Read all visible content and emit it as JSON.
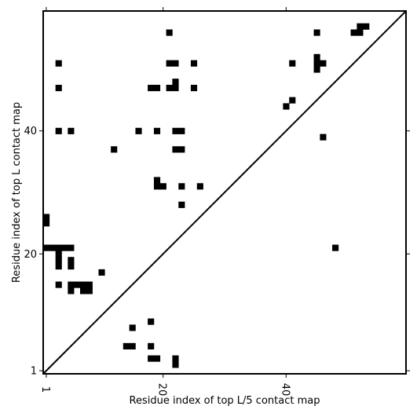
{
  "chart_data": {
    "type": "heatmap",
    "title": "",
    "xlabel": "Residue index of top L/5 contact map",
    "ylabel": "Residue index of top L contact map",
    "xlim": [
      0.5,
      59.5
    ],
    "ylim": [
      0.5,
      59.5
    ],
    "x_ticks": [
      1,
      20,
      40
    ],
    "y_ticks": [
      1,
      20,
      40
    ],
    "x_tick_labels": [
      "1",
      "20",
      "40"
    ],
    "y_tick_labels": [
      "1",
      "20",
      "40"
    ],
    "cell_color": "#000000",
    "background_color": "#ffffff",
    "diagonal": true,
    "cells": [
      [
        1,
        25
      ],
      [
        1,
        26
      ],
      [
        1,
        21
      ],
      [
        2,
        21
      ],
      [
        3,
        21
      ],
      [
        4,
        21
      ],
      [
        3,
        20
      ],
      [
        5,
        21
      ],
      [
        3,
        19
      ],
      [
        3,
        18
      ],
      [
        5,
        19
      ],
      [
        5,
        18
      ],
      [
        10,
        17
      ],
      [
        3,
        15
      ],
      [
        5,
        15
      ],
      [
        6,
        15
      ],
      [
        7,
        15
      ],
      [
        8,
        15
      ],
      [
        5,
        14
      ],
      [
        7,
        14
      ],
      [
        8,
        14
      ],
      [
        15,
        8
      ],
      [
        14,
        5
      ],
      [
        15,
        5
      ],
      [
        18,
        9
      ],
      [
        18,
        5
      ],
      [
        18,
        3
      ],
      [
        19,
        3
      ],
      [
        22,
        3
      ],
      [
        22,
        2
      ],
      [
        3,
        51
      ],
      [
        3,
        47
      ],
      [
        3,
        40
      ],
      [
        5,
        40
      ],
      [
        12,
        37
      ],
      [
        16,
        40
      ],
      [
        19,
        40
      ],
      [
        22,
        40
      ],
      [
        23,
        40
      ],
      [
        18,
        47
      ],
      [
        19,
        47
      ],
      [
        21,
        47
      ],
      [
        22,
        47
      ],
      [
        22,
        48
      ],
      [
        25,
        47
      ],
      [
        21,
        51
      ],
      [
        22,
        51
      ],
      [
        25,
        51
      ],
      [
        21,
        56
      ],
      [
        22,
        37
      ],
      [
        23,
        37
      ],
      [
        19,
        32
      ],
      [
        19,
        31
      ],
      [
        20,
        31
      ],
      [
        23,
        31
      ],
      [
        26,
        31
      ],
      [
        23,
        28
      ],
      [
        41,
        51
      ],
      [
        41,
        45
      ],
      [
        40,
        44
      ],
      [
        45,
        52
      ],
      [
        45,
        51
      ],
      [
        46,
        51
      ],
      [
        45,
        50
      ],
      [
        46,
        39
      ],
      [
        45,
        56
      ],
      [
        48,
        21
      ],
      [
        51,
        56
      ],
      [
        52,
        56
      ],
      [
        52,
        57
      ],
      [
        53,
        57
      ]
    ]
  }
}
